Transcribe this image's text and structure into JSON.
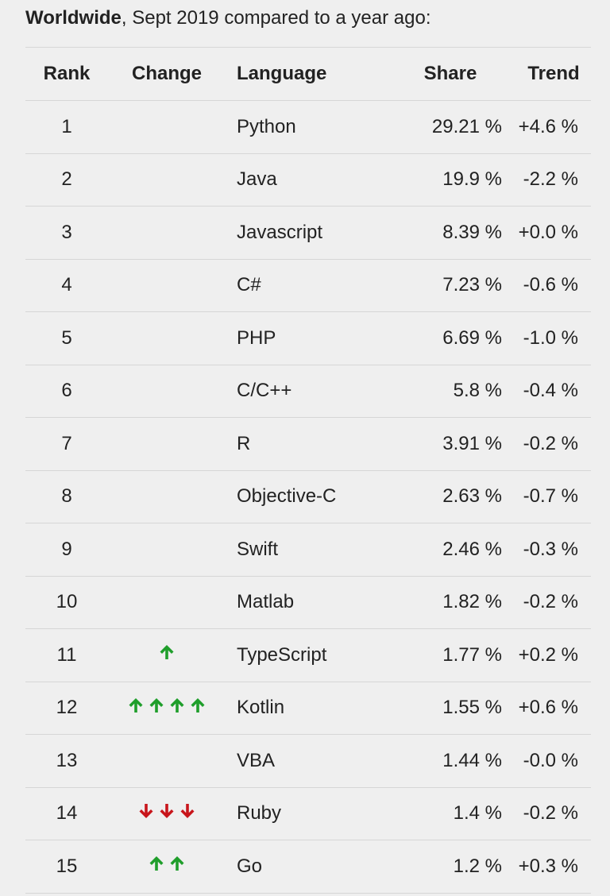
{
  "header": {
    "bold": "Worldwide",
    "rest": ", Sept 2019 compared to a year ago:"
  },
  "columns": {
    "rank": "Rank",
    "change": "Change",
    "language": "Language",
    "share": "Share",
    "trend": "Trend"
  },
  "colors": {
    "up": "#1f9e2b",
    "down": "#c8151b"
  },
  "rows": [
    {
      "rank": "1",
      "change": {
        "dir": "",
        "count": 0
      },
      "language": "Python",
      "share": "29.21 %",
      "trend": "+4.6 %"
    },
    {
      "rank": "2",
      "change": {
        "dir": "",
        "count": 0
      },
      "language": "Java",
      "share": "19.9 %",
      "trend": "-2.2 %"
    },
    {
      "rank": "3",
      "change": {
        "dir": "",
        "count": 0
      },
      "language": "Javascript",
      "share": "8.39 %",
      "trend": "+0.0 %"
    },
    {
      "rank": "4",
      "change": {
        "dir": "",
        "count": 0
      },
      "language": "C#",
      "share": "7.23 %",
      "trend": "-0.6 %"
    },
    {
      "rank": "5",
      "change": {
        "dir": "",
        "count": 0
      },
      "language": "PHP",
      "share": "6.69 %",
      "trend": "-1.0 %"
    },
    {
      "rank": "6",
      "change": {
        "dir": "",
        "count": 0
      },
      "language": "C/C++",
      "share": "5.8 %",
      "trend": "-0.4 %"
    },
    {
      "rank": "7",
      "change": {
        "dir": "",
        "count": 0
      },
      "language": "R",
      "share": "3.91 %",
      "trend": "-0.2 %"
    },
    {
      "rank": "8",
      "change": {
        "dir": "",
        "count": 0
      },
      "language": "Objective-C",
      "share": "2.63 %",
      "trend": "-0.7 %"
    },
    {
      "rank": "9",
      "change": {
        "dir": "",
        "count": 0
      },
      "language": "Swift",
      "share": "2.46 %",
      "trend": "-0.3 %"
    },
    {
      "rank": "10",
      "change": {
        "dir": "",
        "count": 0
      },
      "language": "Matlab",
      "share": "1.82 %",
      "trend": "-0.2 %"
    },
    {
      "rank": "11",
      "change": {
        "dir": "up",
        "count": 1
      },
      "language": "TypeScript",
      "share": "1.77 %",
      "trend": "+0.2 %"
    },
    {
      "rank": "12",
      "change": {
        "dir": "up",
        "count": 4
      },
      "language": "Kotlin",
      "share": "1.55 %",
      "trend": "+0.6 %"
    },
    {
      "rank": "13",
      "change": {
        "dir": "",
        "count": 0
      },
      "language": "VBA",
      "share": "1.44 %",
      "trend": "-0.0 %"
    },
    {
      "rank": "14",
      "change": {
        "dir": "down",
        "count": 3
      },
      "language": "Ruby",
      "share": "1.4 %",
      "trend": "-0.2 %"
    },
    {
      "rank": "15",
      "change": {
        "dir": "up",
        "count": 2
      },
      "language": "Go",
      "share": "1.2 %",
      "trend": "+0.3 %"
    }
  ]
}
